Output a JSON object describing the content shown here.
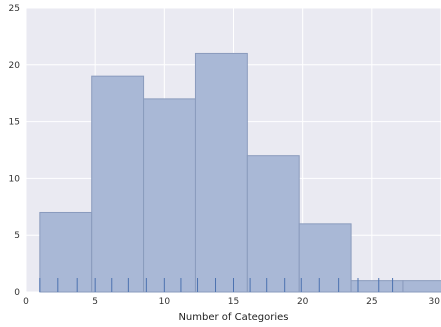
{
  "chart_data": {
    "type": "bar",
    "title": "",
    "xlabel": "Number of Categories",
    "ylabel": "",
    "xlim": [
      0,
      30
    ],
    "ylim": [
      0,
      25
    ],
    "x_ticks": [
      0,
      5,
      10,
      15,
      20,
      25,
      30
    ],
    "y_ticks": [
      0,
      5,
      10,
      15,
      20,
      25
    ],
    "grid": true,
    "background": "#eaeaf2",
    "bar_color": "#a9b8d6",
    "bar_edge_color": "#8a9bbd",
    "rug_color": "#4c72b0",
    "bins": [
      {
        "start": 1.0,
        "end": 4.75,
        "value": 7
      },
      {
        "start": 4.75,
        "end": 8.5,
        "value": 19
      },
      {
        "start": 8.5,
        "end": 12.25,
        "value": 17
      },
      {
        "start": 12.25,
        "end": 16.0,
        "value": 21
      },
      {
        "start": 16.0,
        "end": 19.75,
        "value": 12
      },
      {
        "start": 19.75,
        "end": 23.5,
        "value": 6
      },
      {
        "start": 23.5,
        "end": 27.25,
        "value": 1
      },
      {
        "start": 27.25,
        "end": 31.0,
        "value": 1
      }
    ],
    "rug": [
      1,
      2.3,
      3.7,
      5,
      6.2,
      7.4,
      8.7,
      10,
      11.2,
      12.4,
      13.7,
      15,
      16.2,
      17.4,
      18.7,
      19.9,
      21.2,
      22.6,
      24,
      25.5,
      26.5
    ]
  }
}
